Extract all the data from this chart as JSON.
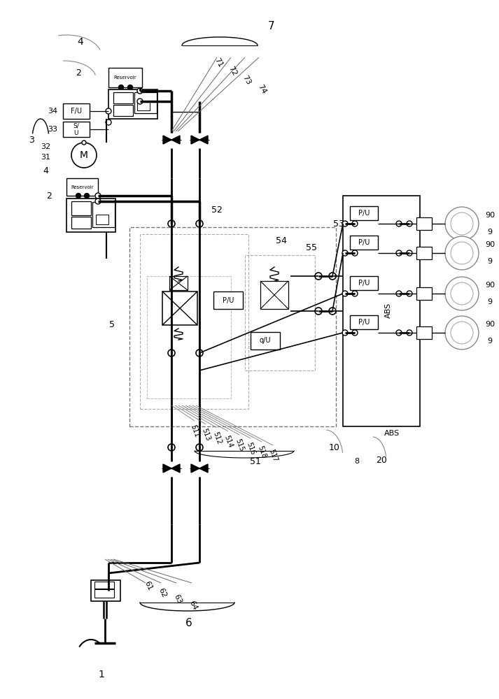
{
  "bg_color": "#ffffff",
  "lc": "#000000",
  "gc": "#999999",
  "figsize": [
    7.13,
    10.0
  ],
  "dpi": 100,
  "xlim": [
    0,
    713
  ],
  "ylim": [
    0,
    1000
  ]
}
